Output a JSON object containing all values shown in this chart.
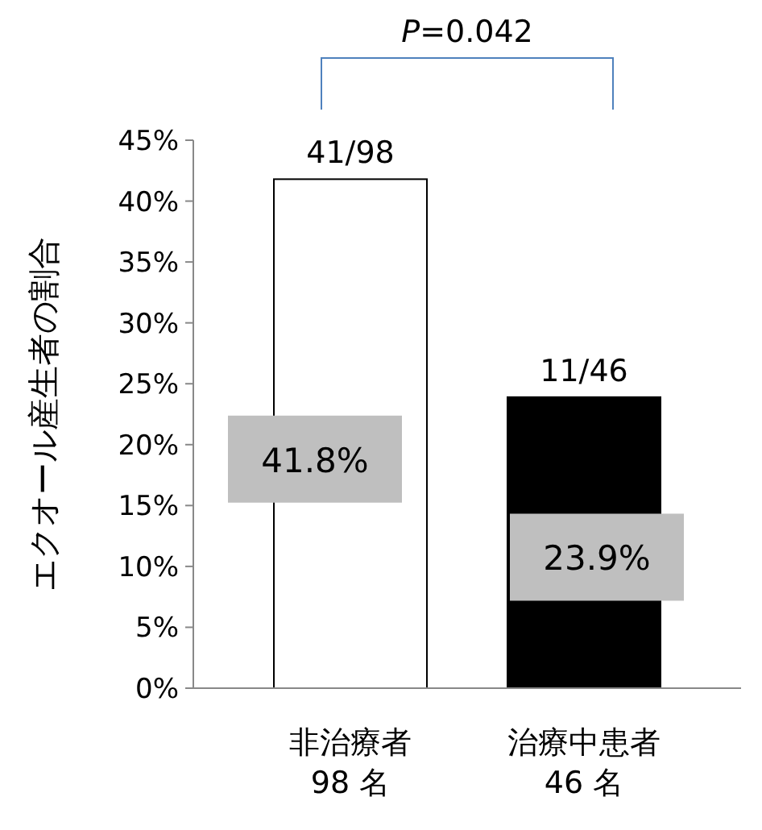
{
  "chart_data": {
    "type": "bar",
    "ylabel": "エクオール産生者の割合",
    "categories": [
      "非治療者\n98 名",
      "治療中患者\n46 名"
    ],
    "values": [
      41.8,
      23.9
    ],
    "colors": [
      "#ffffff",
      "#000000"
    ],
    "value_labels": [
      "41.8%",
      "23.9%"
    ],
    "ylim": [
      0,
      45
    ],
    "yticks": [
      {
        "value": 0,
        "label": "0%"
      },
      {
        "value": 5,
        "label": "5%"
      },
      {
        "value": 10,
        "label": "10%"
      },
      {
        "value": 15,
        "label": "15%"
      },
      {
        "value": 20,
        "label": "20%"
      },
      {
        "value": 25,
        "label": "25%"
      },
      {
        "value": 30,
        "label": "30%"
      },
      {
        "value": 35,
        "label": "35%"
      },
      {
        "value": 40,
        "label": "40%"
      },
      {
        "value": 45,
        "label": "45%"
      }
    ],
    "annotations": [
      {
        "text": "41/98",
        "x": "非治療者\n98 名",
        "y": 41.8
      },
      {
        "text": "11/46",
        "x": "治療中患者\n46 名",
        "y": 23.9
      },
      "*P*=0.042"
    ],
    "grid": false
  }
}
